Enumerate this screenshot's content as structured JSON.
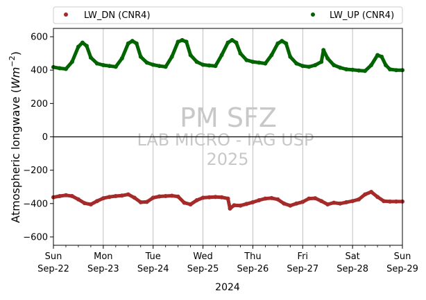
{
  "chart_data": {
    "type": "scatter",
    "xlabel": "2024",
    "ylabel": "Atmospheric longwave (W m⁻²)",
    "ylim": [
      -650,
      650
    ],
    "xlim": [
      "2024-09-22",
      "2024-09-29"
    ],
    "yticks": [
      -600,
      -400,
      -200,
      0,
      200,
      400,
      600
    ],
    "xticks": [
      {
        "day": "Sun",
        "date": "Sep-22"
      },
      {
        "day": "Mon",
        "date": "Sep-23"
      },
      {
        "day": "Tue",
        "date": "Sep-24"
      },
      {
        "day": "Wed",
        "date": "Sep-25"
      },
      {
        "day": "Thu",
        "date": "Sep-26"
      },
      {
        "day": "Fri",
        "date": "Sep-27"
      },
      {
        "day": "Sat",
        "date": "Sep-28"
      },
      {
        "day": "Sun",
        "date": "Sep-29"
      }
    ],
    "grid": "vertical",
    "zero_line": true,
    "legend_position": "top",
    "series": [
      {
        "name": "LW_DN (CNR4)",
        "color": "#a52a2a",
        "points": [
          [
            "2024-09-22T00:00",
            -362
          ],
          [
            "2024-09-22T03:00",
            -355
          ],
          [
            "2024-09-22T06:00",
            -350
          ],
          [
            "2024-09-22T09:00",
            -355
          ],
          [
            "2024-09-22T12:00",
            -375
          ],
          [
            "2024-09-22T15:00",
            -398
          ],
          [
            "2024-09-22T18:00",
            -405
          ],
          [
            "2024-09-22T21:00",
            -385
          ],
          [
            "2024-09-23T00:00",
            -368
          ],
          [
            "2024-09-23T03:00",
            -360
          ],
          [
            "2024-09-23T06:00",
            -355
          ],
          [
            "2024-09-23T09:00",
            -352
          ],
          [
            "2024-09-23T12:00",
            -345
          ],
          [
            "2024-09-23T15:00",
            -365
          ],
          [
            "2024-09-23T18:00",
            -392
          ],
          [
            "2024-09-23T21:00",
            -390
          ],
          [
            "2024-09-24T00:00",
            -365
          ],
          [
            "2024-09-24T03:00",
            -357
          ],
          [
            "2024-09-24T06:00",
            -355
          ],
          [
            "2024-09-24T09:00",
            -353
          ],
          [
            "2024-09-24T12:00",
            -358
          ],
          [
            "2024-09-24T15:00",
            -395
          ],
          [
            "2024-09-24T18:00",
            -405
          ],
          [
            "2024-09-24T21:00",
            -380
          ],
          [
            "2024-09-25T00:00",
            -365
          ],
          [
            "2024-09-25T03:00",
            -362
          ],
          [
            "2024-09-25T06:00",
            -360
          ],
          [
            "2024-09-25T09:00",
            -362
          ],
          [
            "2024-09-25T12:00",
            -370
          ],
          [
            "2024-09-25T13:00",
            -430
          ],
          [
            "2024-09-25T15:00",
            -410
          ],
          [
            "2024-09-25T18:00",
            -412
          ],
          [
            "2024-09-25T21:00",
            -402
          ],
          [
            "2024-09-26T00:00",
            -392
          ],
          [
            "2024-09-26T03:00",
            -380
          ],
          [
            "2024-09-26T06:00",
            -370
          ],
          [
            "2024-09-26T09:00",
            -367
          ],
          [
            "2024-09-26T12:00",
            -375
          ],
          [
            "2024-09-26T15:00",
            -400
          ],
          [
            "2024-09-26T18:00",
            -412
          ],
          [
            "2024-09-26T21:00",
            -400
          ],
          [
            "2024-09-27T00:00",
            -390
          ],
          [
            "2024-09-27T03:00",
            -370
          ],
          [
            "2024-09-27T06:00",
            -368
          ],
          [
            "2024-09-27T09:00",
            -385
          ],
          [
            "2024-09-27T12:00",
            -405
          ],
          [
            "2024-09-27T15:00",
            -395
          ],
          [
            "2024-09-27T18:00",
            -400
          ],
          [
            "2024-09-27T21:00",
            -392
          ],
          [
            "2024-09-28T00:00",
            -385
          ],
          [
            "2024-09-28T03:00",
            -375
          ],
          [
            "2024-09-28T06:00",
            -345
          ],
          [
            "2024-09-28T09:00",
            -330
          ],
          [
            "2024-09-28T12:00",
            -360
          ],
          [
            "2024-09-28T15:00",
            -385
          ],
          [
            "2024-09-28T18:00",
            -388
          ],
          [
            "2024-09-28T21:00",
            -388
          ],
          [
            "2024-09-29T00:00",
            -388
          ]
        ]
      },
      {
        "name": "LW_UP (CNR4)",
        "color": "#006400",
        "points": [
          [
            "2024-09-22T00:00",
            418
          ],
          [
            "2024-09-22T03:00",
            411
          ],
          [
            "2024-09-22T06:00",
            407
          ],
          [
            "2024-09-22T09:00",
            450
          ],
          [
            "2024-09-22T12:00",
            540
          ],
          [
            "2024-09-22T14:00",
            565
          ],
          [
            "2024-09-22T16:00",
            545
          ],
          [
            "2024-09-22T18:00",
            475
          ],
          [
            "2024-09-22T21:00",
            440
          ],
          [
            "2024-09-23T00:00",
            430
          ],
          [
            "2024-09-23T03:00",
            425
          ],
          [
            "2024-09-23T06:00",
            420
          ],
          [
            "2024-09-23T09:00",
            470
          ],
          [
            "2024-09-23T12:00",
            560
          ],
          [
            "2024-09-23T14:00",
            575
          ],
          [
            "2024-09-23T16:00",
            560
          ],
          [
            "2024-09-23T18:00",
            480
          ],
          [
            "2024-09-23T21:00",
            445
          ],
          [
            "2024-09-24T00:00",
            432
          ],
          [
            "2024-09-24T03:00",
            425
          ],
          [
            "2024-09-24T06:00",
            420
          ],
          [
            "2024-09-24T09:00",
            480
          ],
          [
            "2024-09-24T12:00",
            570
          ],
          [
            "2024-09-24T14:00",
            580
          ],
          [
            "2024-09-24T16:00",
            570
          ],
          [
            "2024-09-24T18:00",
            490
          ],
          [
            "2024-09-24T21:00",
            450
          ],
          [
            "2024-09-25T00:00",
            432
          ],
          [
            "2024-09-25T03:00",
            428
          ],
          [
            "2024-09-25T06:00",
            425
          ],
          [
            "2024-09-25T09:00",
            490
          ],
          [
            "2024-09-25T12:00",
            565
          ],
          [
            "2024-09-25T14:00",
            580
          ],
          [
            "2024-09-25T16:00",
            565
          ],
          [
            "2024-09-25T18:00",
            500
          ],
          [
            "2024-09-25T21:00",
            460
          ],
          [
            "2024-09-26T00:00",
            450
          ],
          [
            "2024-09-26T03:00",
            445
          ],
          [
            "2024-09-26T06:00",
            440
          ],
          [
            "2024-09-26T09:00",
            490
          ],
          [
            "2024-09-26T12:00",
            560
          ],
          [
            "2024-09-26T14:00",
            575
          ],
          [
            "2024-09-26T16:00",
            560
          ],
          [
            "2024-09-26T18:00",
            480
          ],
          [
            "2024-09-26T21:00",
            440
          ],
          [
            "2024-09-27T00:00",
            425
          ],
          [
            "2024-09-27T03:00",
            420
          ],
          [
            "2024-09-27T06:00",
            430
          ],
          [
            "2024-09-27T09:00",
            450
          ],
          [
            "2024-09-27T10:00",
            520
          ],
          [
            "2024-09-27T12:00",
            470
          ],
          [
            "2024-09-27T15:00",
            430
          ],
          [
            "2024-09-27T18:00",
            415
          ],
          [
            "2024-09-27T21:00",
            405
          ],
          [
            "2024-09-28T00:00",
            402
          ],
          [
            "2024-09-28T03:00",
            398
          ],
          [
            "2024-09-28T06:00",
            395
          ],
          [
            "2024-09-28T09:00",
            430
          ],
          [
            "2024-09-28T12:00",
            490
          ],
          [
            "2024-09-28T14:00",
            480
          ],
          [
            "2024-09-28T16:00",
            430
          ],
          [
            "2024-09-28T18:00",
            405
          ],
          [
            "2024-09-28T21:00",
            400
          ],
          [
            "2024-09-29T00:00",
            400
          ]
        ]
      }
    ],
    "watermark": {
      "line1": "PM SFZ",
      "line2": "LAB MICRO - IAG USP",
      "line3": "2025"
    }
  }
}
